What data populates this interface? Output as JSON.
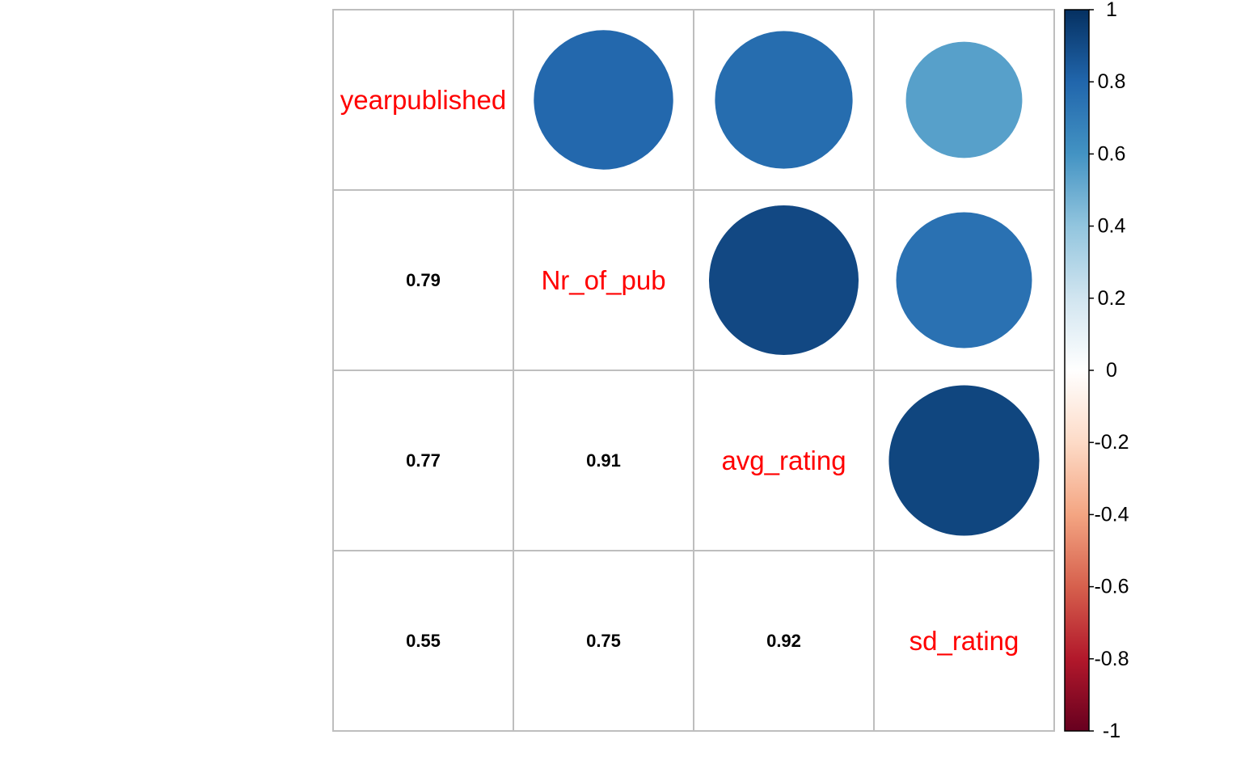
{
  "colors": {
    "label": "#FF0000",
    "number": "#000000",
    "grid": "#BEBEBE",
    "colorbar_stops": [
      "#67001F",
      "#B2182B",
      "#D6604D",
      "#F4A582",
      "#FDDBC7",
      "#FFFFFF",
      "#D1E5F0",
      "#92C5DE",
      "#4393C3",
      "#2166AC",
      "#053061"
    ]
  },
  "chart_data": {
    "type": "correlation-matrix",
    "method_upper": "circle",
    "method_lower": "number",
    "variables": [
      "yearpublished",
      "Nr_of_pub",
      "avg_rating",
      "sd_rating"
    ],
    "matrix": [
      [
        1.0,
        0.79,
        0.77,
        0.55
      ],
      [
        0.79,
        1.0,
        0.91,
        0.75
      ],
      [
        0.77,
        0.91,
        1.0,
        0.92
      ],
      [
        0.55,
        0.75,
        0.92,
        1.0
      ]
    ],
    "lower_labels": [
      {
        "row": 1,
        "col": 0,
        "text": "0.79"
      },
      {
        "row": 2,
        "col": 0,
        "text": "0.77"
      },
      {
        "row": 2,
        "col": 1,
        "text": "0.91"
      },
      {
        "row": 3,
        "col": 0,
        "text": "0.55"
      },
      {
        "row": 3,
        "col": 1,
        "text": "0.75"
      },
      {
        "row": 3,
        "col": 2,
        "text": "0.92"
      }
    ],
    "colorbar": {
      "range": [
        -1,
        1
      ],
      "ticks": [
        "1",
        "0.8",
        "0.6",
        "0.4",
        "0.2",
        "0",
        "-0.2",
        "-0.4",
        "-0.6",
        "-0.8",
        "-1"
      ],
      "placement": "right"
    }
  }
}
